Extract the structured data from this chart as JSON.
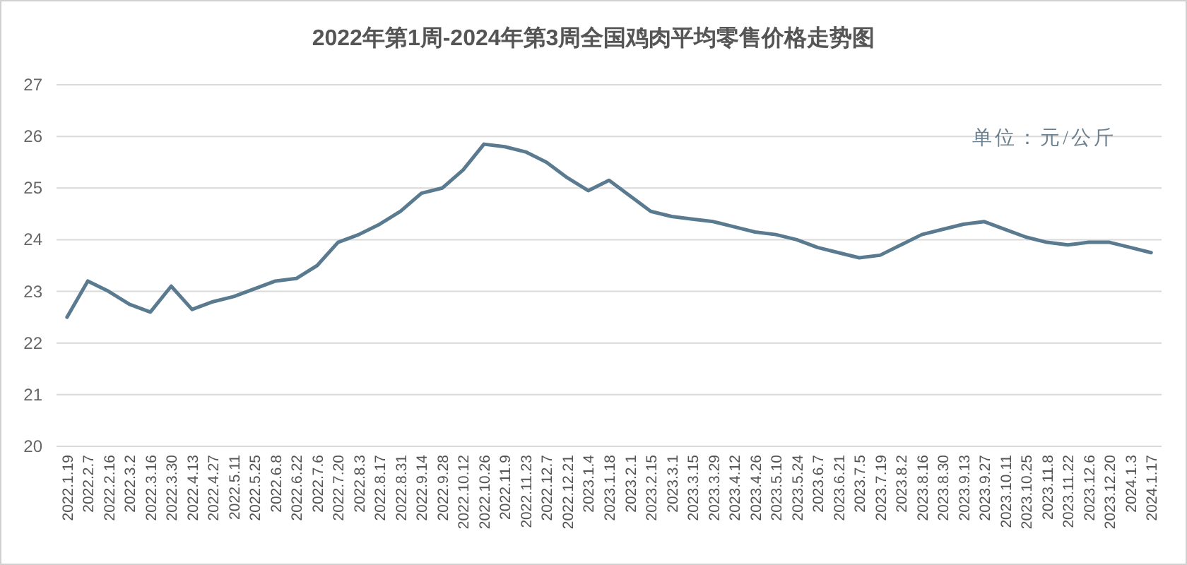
{
  "chart_data": {
    "type": "line",
    "title": "2022年第1周-2024年第3周全国鸡肉平均零售价格走势图",
    "annotations": [
      "单位：元/公斤"
    ],
    "categories": [
      "2022.1.19",
      "2022.2.7",
      "2022.2.16",
      "2022.3.2",
      "2022.3.16",
      "2022.3.30",
      "2022.4.13",
      "2022.4.27",
      "2022.5.11",
      "2022.5.25",
      "2022.6.8",
      "2022.6.22",
      "2022.7.6",
      "2022.7.20",
      "2022.8.3",
      "2022.8.17",
      "2022.8.31",
      "2022.9.14",
      "2022.9.28",
      "2022.10.12",
      "2022.10.26",
      "2022.11.9",
      "2022.11.23",
      "2022.12.7",
      "2022.12.21",
      "2023.1.4",
      "2023.1.18",
      "2023.2.1",
      "2023.2.15",
      "2023.3.1",
      "2023.3.15",
      "2023.3.29",
      "2023.4.12",
      "2023.4.26",
      "2023.5.10",
      "2023.5.24",
      "2023.6.7",
      "2023.6.21",
      "2023.7.5",
      "2023.7.19",
      "2023.8.2",
      "2023.8.16",
      "2023.8.30",
      "2023.9.13",
      "2023.9.27",
      "2023.10.11",
      "2023.10.25",
      "2023.11.8",
      "2023.11.22",
      "2023.12.6",
      "2023.12.20",
      "2024.1.3",
      "2024.1.17"
    ],
    "series": [
      {
        "color": "#5a7a90",
        "values": [
          22.5,
          23.2,
          23.0,
          22.75,
          22.6,
          23.1,
          22.65,
          22.8,
          22.9,
          23.05,
          23.2,
          23.25,
          23.5,
          23.95,
          24.1,
          24.3,
          24.55,
          24.9,
          25.0,
          25.35,
          25.85,
          25.8,
          25.7,
          25.5,
          25.2,
          24.95,
          25.15,
          24.85,
          24.55,
          24.45,
          24.4,
          24.35,
          24.25,
          24.15,
          24.1,
          24.0,
          23.85,
          23.75,
          23.65,
          23.7,
          23.9,
          24.1,
          24.2,
          24.3,
          24.35,
          24.2,
          24.05,
          23.95,
          23.9,
          23.95,
          23.95,
          23.85,
          23.75
        ]
      }
    ],
    "ylim": [
      20,
      27
    ],
    "yticks": [
      20,
      21,
      22,
      23,
      24,
      25,
      26,
      27
    ],
    "grid": "y",
    "marker": "none",
    "line_style": "solid"
  }
}
